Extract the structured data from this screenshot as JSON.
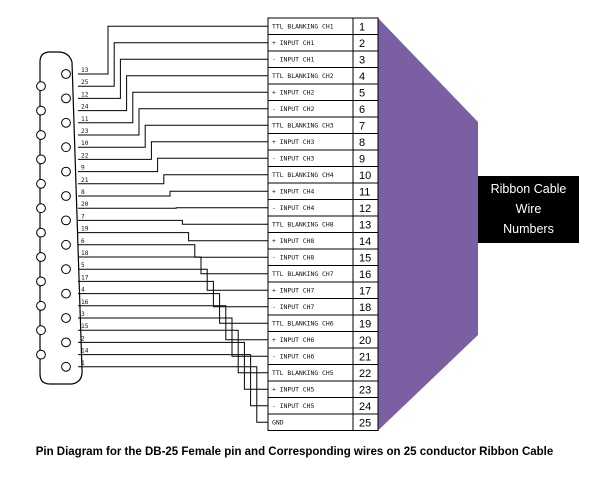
{
  "diagram": {
    "colors": {
      "ribbon": "#7b5fa3",
      "label_box": "#000000",
      "label_text": "#ffffff",
      "line": "#000000"
    },
    "ribbon_label": [
      "Ribbon Cable",
      "Wire",
      "Numbers"
    ],
    "caption": "Pin Diagram for the DB-25 Female pin and Corresponding wires on 25 conductor Ribbon Cable",
    "wires": [
      {
        "number": "1",
        "signal": "TTL BLANKING CH1",
        "db25_pin": "13"
      },
      {
        "number": "2",
        "signal": "+ INPUT CH1",
        "db25_pin": "25"
      },
      {
        "number": "3",
        "signal": "- INPUT CH1",
        "db25_pin": "12"
      },
      {
        "number": "4",
        "signal": "TTL BLANKING CH2",
        "db25_pin": "24"
      },
      {
        "number": "5",
        "signal": "+ INPUT CH2",
        "db25_pin": "11"
      },
      {
        "number": "6",
        "signal": "- INPUT CH2",
        "db25_pin": "23"
      },
      {
        "number": "7",
        "signal": "TTL BLANKING CH3",
        "db25_pin": "10"
      },
      {
        "number": "8",
        "signal": "+ INPUT CH3",
        "db25_pin": "22"
      },
      {
        "number": "9",
        "signal": "- INPUT CH3",
        "db25_pin": "9"
      },
      {
        "number": "10",
        "signal": "TTL BLANKING CH4",
        "db25_pin": "21"
      },
      {
        "number": "11",
        "signal": "+ INPUT CH4",
        "db25_pin": "8"
      },
      {
        "number": "12",
        "signal": "- INPUT CH4",
        "db25_pin": "20"
      },
      {
        "number": "13",
        "signal": "TTL BLANKING CH8",
        "db25_pin": "7"
      },
      {
        "number": "14",
        "signal": "+ INPUT CH8",
        "db25_pin": "19"
      },
      {
        "number": "15",
        "signal": "- INPUT CH8",
        "db25_pin": "6"
      },
      {
        "number": "16",
        "signal": "TTL BLANKING CH7",
        "db25_pin": "18"
      },
      {
        "number": "17",
        "signal": "+ INPUT CH7",
        "db25_pin": "5"
      },
      {
        "number": "18",
        "signal": "- INPUT CH7",
        "db25_pin": "17"
      },
      {
        "number": "19",
        "signal": "TTL BLANKING CH6",
        "db25_pin": "4"
      },
      {
        "number": "20",
        "signal": "+ INPUT CH6",
        "db25_pin": "16"
      },
      {
        "number": "21",
        "signal": "- INPUT CH6",
        "db25_pin": "3"
      },
      {
        "number": "22",
        "signal": "TTL BLANKING CH5",
        "db25_pin": "15"
      },
      {
        "number": "23",
        "signal": "+ INPUT CH5",
        "db25_pin": "2"
      },
      {
        "number": "24",
        "signal": "- INPUT CH5",
        "db25_pin": "14"
      },
      {
        "number": "25",
        "signal": "GND",
        "db25_pin": "1"
      }
    ]
  }
}
